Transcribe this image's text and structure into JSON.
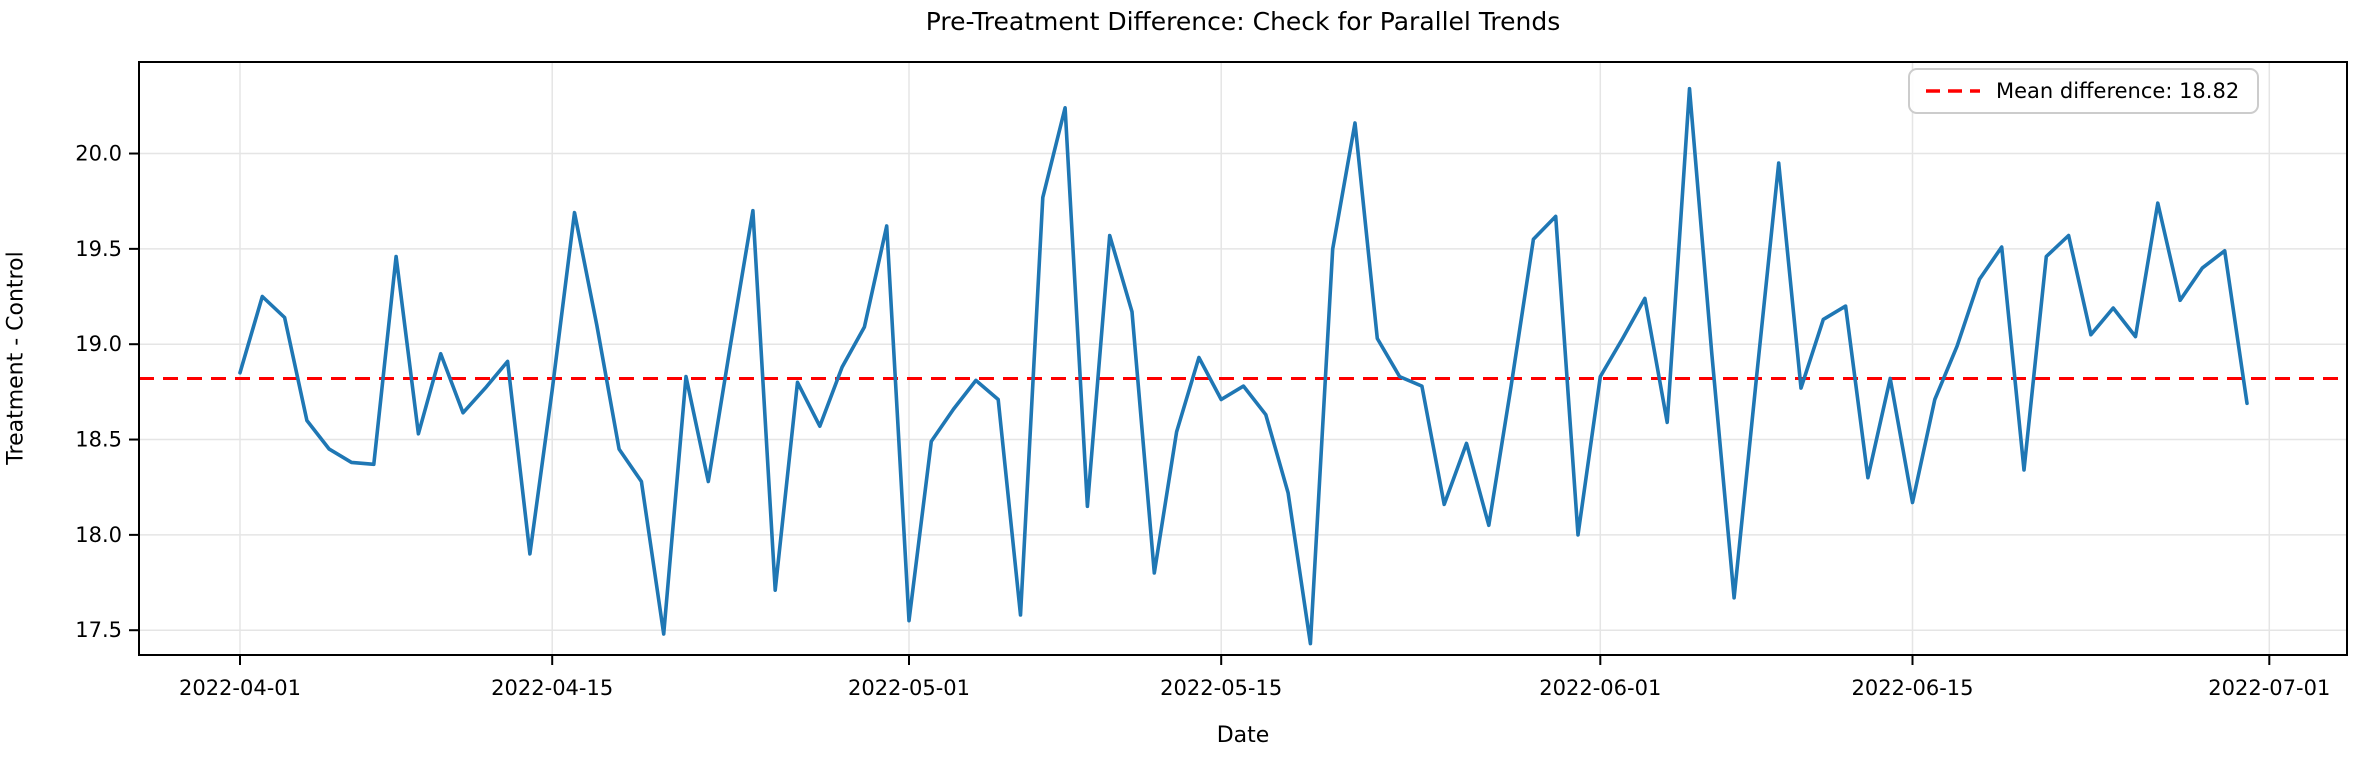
{
  "figure": {
    "background_color": "#ffffff",
    "colors": {
      "series_line": "#1f77b4",
      "mean_line": "#ff0000",
      "grid": "#e5e5e5",
      "spine": "#000000",
      "tick_text": "#000000",
      "legend_border": "#cccccc"
    }
  },
  "chart_data": {
    "type": "line",
    "title": "Pre-Treatment Difference: Check for Parallel Trends",
    "xlabel": "Date",
    "ylabel": "Treatment - Control",
    "legend_label": "Mean difference: 18.82",
    "legend_position": "upper right",
    "grid": true,
    "mean_difference": 18.82,
    "ylim": [
      17.37,
      20.48
    ],
    "y_ticks": [
      17.5,
      18.0,
      18.5,
      19.0,
      19.5,
      20.0
    ],
    "x_ticks": [
      "2022-04-01",
      "2022-04-15",
      "2022-05-01",
      "2022-05-15",
      "2022-06-01",
      "2022-06-15",
      "2022-07-01"
    ],
    "x": [
      "2022-04-01",
      "2022-04-02",
      "2022-04-03",
      "2022-04-04",
      "2022-04-05",
      "2022-04-06",
      "2022-04-07",
      "2022-04-08",
      "2022-04-09",
      "2022-04-10",
      "2022-04-11",
      "2022-04-12",
      "2022-04-13",
      "2022-04-14",
      "2022-04-15",
      "2022-04-16",
      "2022-04-17",
      "2022-04-18",
      "2022-04-19",
      "2022-04-20",
      "2022-04-21",
      "2022-04-22",
      "2022-04-23",
      "2022-04-24",
      "2022-04-25",
      "2022-04-26",
      "2022-04-27",
      "2022-04-28",
      "2022-04-29",
      "2022-04-30",
      "2022-05-01",
      "2022-05-02",
      "2022-05-03",
      "2022-05-04",
      "2022-05-05",
      "2022-05-06",
      "2022-05-07",
      "2022-05-08",
      "2022-05-09",
      "2022-05-10",
      "2022-05-11",
      "2022-05-12",
      "2022-05-13",
      "2022-05-14",
      "2022-05-15",
      "2022-05-16",
      "2022-05-17",
      "2022-05-18",
      "2022-05-19",
      "2022-05-20",
      "2022-05-21",
      "2022-05-22",
      "2022-05-23",
      "2022-05-24",
      "2022-05-25",
      "2022-05-26",
      "2022-05-27",
      "2022-05-28",
      "2022-05-29",
      "2022-05-30",
      "2022-05-31",
      "2022-06-01",
      "2022-06-02",
      "2022-06-03",
      "2022-06-04",
      "2022-06-05",
      "2022-06-06",
      "2022-06-07",
      "2022-06-08",
      "2022-06-09",
      "2022-06-10",
      "2022-06-11",
      "2022-06-12",
      "2022-06-13",
      "2022-06-14",
      "2022-06-15",
      "2022-06-16",
      "2022-06-17",
      "2022-06-18",
      "2022-06-19",
      "2022-06-20",
      "2022-06-21",
      "2022-06-22",
      "2022-06-23",
      "2022-06-24",
      "2022-06-25",
      "2022-06-26",
      "2022-06-27",
      "2022-06-28",
      "2022-06-29",
      "2022-06-30"
    ],
    "series": [
      {
        "name": "Treatment - Control difference",
        "values": [
          18.85,
          19.25,
          19.14,
          18.6,
          18.45,
          18.38,
          18.37,
          19.46,
          18.53,
          18.95,
          18.64,
          18.77,
          18.91,
          17.9,
          18.76,
          19.69,
          19.1,
          18.45,
          18.28,
          17.48,
          18.83,
          18.28,
          19.0,
          19.7,
          17.71,
          18.8,
          18.57,
          18.88,
          19.09,
          19.62,
          17.55,
          18.49,
          18.66,
          18.81,
          18.71,
          17.58,
          19.77,
          20.24,
          18.15,
          19.57,
          19.17,
          17.8,
          18.54,
          18.93,
          18.71,
          18.78,
          18.63,
          18.22,
          17.43,
          19.5,
          20.16,
          19.03,
          18.83,
          18.78,
          18.16,
          18.48,
          18.05,
          18.78,
          19.55,
          19.67,
          18.0,
          18.83,
          19.03,
          19.24,
          18.59,
          20.34,
          18.95,
          17.67,
          18.82,
          19.95,
          18.77,
          19.13,
          19.2,
          18.3,
          18.82,
          18.17,
          18.71,
          18.99,
          19.34,
          19.51,
          18.34,
          19.46,
          19.57,
          19.05,
          19.19,
          19.04,
          19.74,
          19.23,
          19.4,
          19.49,
          18.69
        ]
      }
    ]
  }
}
